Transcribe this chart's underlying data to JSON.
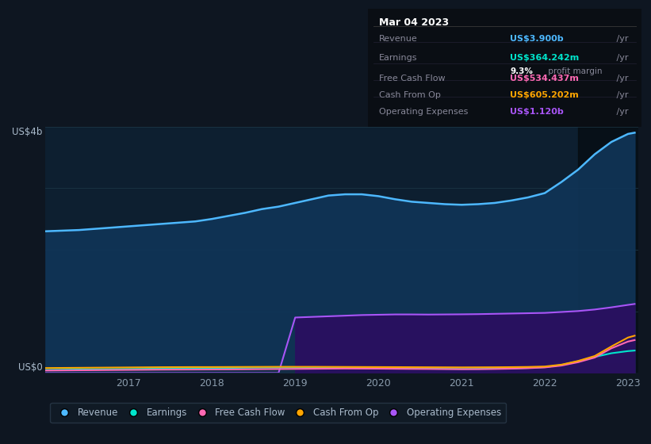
{
  "bg_color": "#0e1621",
  "plot_bg_color": "#0d1f30",
  "grid_color": "#1e3a4a",
  "title_date": "Mar 04 2023",
  "tooltip": {
    "Revenue": {
      "value": "US$3.900b",
      "color": "#4db8ff"
    },
    "Earnings": {
      "value": "US$364.242m",
      "color": "#00e5cc"
    },
    "profit_margin": "9.3%",
    "profit_margin_text": " profit margin",
    "Free Cash Flow": {
      "value": "US$534.437m",
      "color": "#ff69b4"
    },
    "Cash From Op": {
      "value": "US$605.202m",
      "color": "#ffa500"
    },
    "Operating Expenses": {
      "value": "US$1.120b",
      "color": "#a855f7"
    }
  },
  "years": [
    2016.0,
    2016.2,
    2016.4,
    2016.6,
    2016.8,
    2017.0,
    2017.2,
    2017.4,
    2017.6,
    2017.8,
    2018.0,
    2018.2,
    2018.4,
    2018.6,
    2018.8,
    2019.0,
    2019.2,
    2019.4,
    2019.6,
    2019.8,
    2020.0,
    2020.2,
    2020.4,
    2020.6,
    2020.8,
    2021.0,
    2021.2,
    2021.4,
    2021.6,
    2021.8,
    2022.0,
    2022.2,
    2022.4,
    2022.6,
    2022.8,
    2023.0,
    2023.08
  ],
  "revenue": [
    2.3,
    2.31,
    2.32,
    2.34,
    2.36,
    2.38,
    2.4,
    2.42,
    2.44,
    2.46,
    2.5,
    2.55,
    2.6,
    2.66,
    2.7,
    2.76,
    2.82,
    2.88,
    2.9,
    2.9,
    2.87,
    2.82,
    2.78,
    2.76,
    2.74,
    2.73,
    2.74,
    2.76,
    2.8,
    2.85,
    2.92,
    3.1,
    3.3,
    3.55,
    3.75,
    3.88,
    3.9
  ],
  "earnings": [
    0.05,
    0.053,
    0.056,
    0.059,
    0.062,
    0.065,
    0.068,
    0.072,
    0.075,
    0.078,
    0.08,
    0.082,
    0.085,
    0.087,
    0.088,
    0.088,
    0.087,
    0.085,
    0.083,
    0.082,
    0.078,
    0.075,
    0.073,
    0.07,
    0.068,
    0.066,
    0.067,
    0.07,
    0.075,
    0.082,
    0.095,
    0.13,
    0.19,
    0.26,
    0.32,
    0.355,
    0.364
  ],
  "free_cash_flow": [
    0.04,
    0.042,
    0.044,
    0.046,
    0.048,
    0.05,
    0.052,
    0.054,
    0.055,
    0.056,
    0.057,
    0.058,
    0.06,
    0.062,
    0.064,
    0.066,
    0.068,
    0.07,
    0.072,
    0.071,
    0.07,
    0.068,
    0.066,
    0.065,
    0.063,
    0.061,
    0.062,
    0.065,
    0.07,
    0.078,
    0.09,
    0.12,
    0.175,
    0.25,
    0.4,
    0.51,
    0.534
  ],
  "cash_from_op": [
    0.08,
    0.082,
    0.084,
    0.086,
    0.088,
    0.09,
    0.092,
    0.094,
    0.095,
    0.096,
    0.096,
    0.097,
    0.098,
    0.099,
    0.1,
    0.1,
    0.1,
    0.099,
    0.098,
    0.097,
    0.096,
    0.095,
    0.094,
    0.093,
    0.092,
    0.091,
    0.092,
    0.093,
    0.095,
    0.098,
    0.105,
    0.135,
    0.195,
    0.275,
    0.43,
    0.575,
    0.605
  ],
  "op_expenses": [
    0.0,
    0.0,
    0.0,
    0.0,
    0.0,
    0.0,
    0.0,
    0.0,
    0.0,
    0.0,
    0.0,
    0.0,
    0.0,
    0.0,
    0.0,
    0.9,
    0.91,
    0.92,
    0.93,
    0.94,
    0.945,
    0.95,
    0.95,
    0.948,
    0.95,
    0.952,
    0.955,
    0.96,
    0.965,
    0.97,
    0.975,
    0.99,
    1.005,
    1.03,
    1.065,
    1.105,
    1.12
  ],
  "revenue_color": "#4db8ff",
  "earnings_color": "#00e5cc",
  "free_cash_flow_color": "#ff69b4",
  "cash_from_op_color": "#ffa500",
  "op_expenses_color": "#a855f7",
  "revenue_fill": "#103558",
  "op_expenses_fill": "#2a1060",
  "ylabel_top": "US$4b",
  "ylabel_bot": "US$0",
  "x_ticks": [
    2017,
    2018,
    2019,
    2020,
    2021,
    2022,
    2023
  ],
  "ylim": [
    0.0,
    4.0
  ],
  "legend_items": [
    "Revenue",
    "Earnings",
    "Free Cash Flow",
    "Cash From Op",
    "Operating Expenses"
  ],
  "legend_colors": [
    "#4db8ff",
    "#00e5cc",
    "#ff69b4",
    "#ffa500",
    "#a855f7"
  ],
  "tooltip_bg": "#0a0e14",
  "tooltip_border": "#2a3a4a"
}
